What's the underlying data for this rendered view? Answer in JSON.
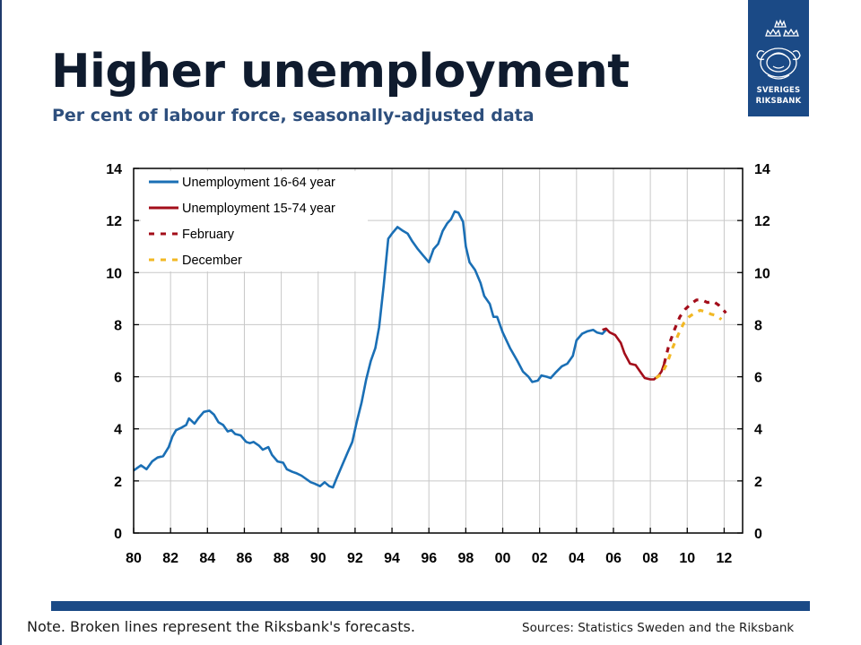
{
  "header": {
    "title": "Higher unemployment",
    "subtitle": "Per cent of labour force, seasonally-adjusted data"
  },
  "logo": {
    "line1": "SVERIGES",
    "line2": "RIKSBANK",
    "color": "#1b4a86"
  },
  "footer": {
    "note": "Note. Broken lines represent the Riksbank's forecasts.",
    "source": "Sources: Statistics Sweden and the Riksbank"
  },
  "chart_data": {
    "type": "line",
    "title": "",
    "xlabel": "",
    "ylabel": "",
    "xlim": [
      1980,
      2013
    ],
    "ylim": [
      0,
      14
    ],
    "x_ticks": [
      1980,
      1982,
      1984,
      1986,
      1988,
      1990,
      1992,
      1994,
      1996,
      1998,
      2000,
      2002,
      2004,
      2006,
      2008,
      2010,
      2012
    ],
    "x_tick_labels": [
      "80",
      "82",
      "84",
      "86",
      "88",
      "90",
      "92",
      "94",
      "96",
      "98",
      "00",
      "02",
      "04",
      "06",
      "08",
      "10",
      "12"
    ],
    "y_ticks": [
      0,
      2,
      4,
      6,
      8,
      10,
      12,
      14
    ],
    "y_tick_labels": [
      "0",
      "2",
      "4",
      "6",
      "8",
      "10",
      "12",
      "14"
    ],
    "y2_tick_labels": [
      "0",
      "2",
      "4",
      "6",
      "8",
      "10",
      "12",
      "14"
    ],
    "grid": true,
    "legend_position": "top-left",
    "series": [
      {
        "name": "Unemployment 16-64 year",
        "color": "#1a6fb5",
        "dash": "solid",
        "points": [
          [
            1980.0,
            2.4
          ],
          [
            1980.4,
            2.6
          ],
          [
            1980.7,
            2.45
          ],
          [
            1981.0,
            2.75
          ],
          [
            1981.3,
            2.9
          ],
          [
            1981.6,
            2.95
          ],
          [
            1981.9,
            3.3
          ],
          [
            1982.1,
            3.7
          ],
          [
            1982.3,
            3.95
          ],
          [
            1982.6,
            4.05
          ],
          [
            1982.85,
            4.15
          ],
          [
            1983.0,
            4.4
          ],
          [
            1983.3,
            4.2
          ],
          [
            1983.5,
            4.4
          ],
          [
            1983.8,
            4.65
          ],
          [
            1984.1,
            4.7
          ],
          [
            1984.35,
            4.55
          ],
          [
            1984.6,
            4.25
          ],
          [
            1984.85,
            4.15
          ],
          [
            1985.1,
            3.9
          ],
          [
            1985.3,
            3.95
          ],
          [
            1985.5,
            3.8
          ],
          [
            1985.8,
            3.75
          ],
          [
            1986.1,
            3.5
          ],
          [
            1986.3,
            3.45
          ],
          [
            1986.5,
            3.5
          ],
          [
            1986.8,
            3.35
          ],
          [
            1987.0,
            3.2
          ],
          [
            1987.3,
            3.3
          ],
          [
            1987.5,
            3.0
          ],
          [
            1987.8,
            2.75
          ],
          [
            1988.1,
            2.7
          ],
          [
            1988.3,
            2.45
          ],
          [
            1988.6,
            2.35
          ],
          [
            1988.8,
            2.3
          ],
          [
            1989.1,
            2.2
          ],
          [
            1989.3,
            2.1
          ],
          [
            1989.6,
            1.95
          ],
          [
            1989.8,
            1.9
          ],
          [
            1990.1,
            1.8
          ],
          [
            1990.35,
            1.95
          ],
          [
            1990.6,
            1.8
          ],
          [
            1990.8,
            1.75
          ],
          [
            1991.0,
            2.1
          ],
          [
            1991.3,
            2.6
          ],
          [
            1991.6,
            3.1
          ],
          [
            1991.85,
            3.5
          ],
          [
            1992.1,
            4.3
          ],
          [
            1992.35,
            5.0
          ],
          [
            1992.6,
            5.9
          ],
          [
            1992.85,
            6.6
          ],
          [
            1993.1,
            7.1
          ],
          [
            1993.3,
            7.9
          ],
          [
            1993.55,
            9.5
          ],
          [
            1993.8,
            11.3
          ],
          [
            1994.0,
            11.5
          ],
          [
            1994.3,
            11.75
          ],
          [
            1994.6,
            11.6
          ],
          [
            1994.85,
            11.5
          ],
          [
            1995.1,
            11.2
          ],
          [
            1995.4,
            10.9
          ],
          [
            1995.7,
            10.65
          ],
          [
            1996.0,
            10.4
          ],
          [
            1996.25,
            10.9
          ],
          [
            1996.5,
            11.1
          ],
          [
            1996.75,
            11.6
          ],
          [
            1997.0,
            11.9
          ],
          [
            1997.2,
            12.05
          ],
          [
            1997.4,
            12.35
          ],
          [
            1997.6,
            12.3
          ],
          [
            1997.85,
            11.95
          ],
          [
            1998.0,
            11.0
          ],
          [
            1998.2,
            10.4
          ],
          [
            1998.5,
            10.1
          ],
          [
            1998.8,
            9.6
          ],
          [
            1999.0,
            9.1
          ],
          [
            1999.3,
            8.8
          ],
          [
            1999.5,
            8.3
          ],
          [
            1999.7,
            8.3
          ],
          [
            2000.0,
            7.7
          ],
          [
            2000.4,
            7.1
          ],
          [
            2000.8,
            6.6
          ],
          [
            2001.1,
            6.2
          ],
          [
            2001.4,
            6.0
          ],
          [
            2001.6,
            5.8
          ],
          [
            2001.9,
            5.85
          ],
          [
            2002.1,
            6.05
          ],
          [
            2002.4,
            6.0
          ],
          [
            2002.6,
            5.95
          ],
          [
            2002.85,
            6.15
          ],
          [
            2003.2,
            6.4
          ],
          [
            2003.5,
            6.5
          ],
          [
            2003.8,
            6.8
          ],
          [
            2004.0,
            7.4
          ],
          [
            2004.3,
            7.65
          ],
          [
            2004.6,
            7.75
          ],
          [
            2004.9,
            7.8
          ],
          [
            2005.1,
            7.7
          ],
          [
            2005.4,
            7.65
          ],
          [
            2005.6,
            7.8
          ]
        ]
      },
      {
        "name": "Unemployment 15-74 year",
        "color": "#a30d1a",
        "dash": "solid",
        "points": [
          [
            2005.4,
            7.8
          ],
          [
            2005.6,
            7.85
          ],
          [
            2005.8,
            7.7
          ],
          [
            2006.1,
            7.6
          ],
          [
            2006.4,
            7.3
          ],
          [
            2006.6,
            6.9
          ],
          [
            2006.9,
            6.5
          ],
          [
            2007.2,
            6.45
          ],
          [
            2007.5,
            6.15
          ],
          [
            2007.7,
            5.95
          ],
          [
            2008.0,
            5.9
          ],
          [
            2008.2,
            5.9
          ],
          [
            2008.45,
            6.05
          ],
          [
            2008.6,
            6.2
          ],
          [
            2008.75,
            6.5
          ]
        ]
      },
      {
        "name": "February",
        "color": "#a30d1a",
        "dash": "dashed",
        "points": [
          [
            2008.75,
            6.5
          ],
          [
            2009.0,
            7.2
          ],
          [
            2009.3,
            7.8
          ],
          [
            2009.6,
            8.3
          ],
          [
            2009.9,
            8.6
          ],
          [
            2010.2,
            8.8
          ],
          [
            2010.5,
            8.95
          ],
          [
            2010.8,
            8.95
          ],
          [
            2011.1,
            8.85
          ],
          [
            2011.4,
            8.9
          ],
          [
            2011.7,
            8.75
          ],
          [
            2012.1,
            8.45
          ]
        ]
      },
      {
        "name": "December",
        "color": "#f2b824",
        "dash": "dashed",
        "points": [
          [
            2008.3,
            5.95
          ],
          [
            2008.6,
            6.1
          ],
          [
            2008.9,
            6.5
          ],
          [
            2009.2,
            7.1
          ],
          [
            2009.5,
            7.6
          ],
          [
            2009.8,
            8.05
          ],
          [
            2010.1,
            8.3
          ],
          [
            2010.4,
            8.45
          ],
          [
            2010.7,
            8.55
          ],
          [
            2011.0,
            8.5
          ],
          [
            2011.3,
            8.4
          ],
          [
            2011.6,
            8.35
          ],
          [
            2011.85,
            8.2
          ]
        ]
      }
    ]
  }
}
